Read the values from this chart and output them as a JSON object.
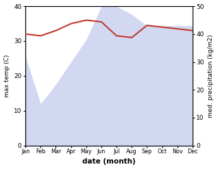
{
  "months": [
    "Jan",
    "Feb",
    "Mar",
    "Apr",
    "May",
    "Jun",
    "Jul",
    "Aug",
    "Sep",
    "Oct",
    "Nov",
    "Dec"
  ],
  "temperature": [
    32.0,
    31.5,
    33.0,
    35.0,
    36.0,
    35.5,
    31.5,
    31.0,
    34.5,
    34.0,
    33.5,
    33.0
  ],
  "precipitation": [
    32,
    15,
    22,
    30,
    38,
    50,
    50,
    47,
    43,
    43,
    43,
    43
  ],
  "temp_color": "#c0392b",
  "precip_color_fill": "#b0b8e8",
  "ylim_left": [
    0,
    40
  ],
  "ylim_right": [
    0,
    50
  ],
  "ylabel_left": "max temp (C)",
  "ylabel_right": "med. precipitation (kg/m2)",
  "xlabel": "date (month)",
  "precip_fill_alpha": 0.55,
  "right_ticks": [
    0,
    10,
    20,
    30,
    40,
    50
  ],
  "left_ticks": [
    0,
    10,
    20,
    30,
    40
  ]
}
